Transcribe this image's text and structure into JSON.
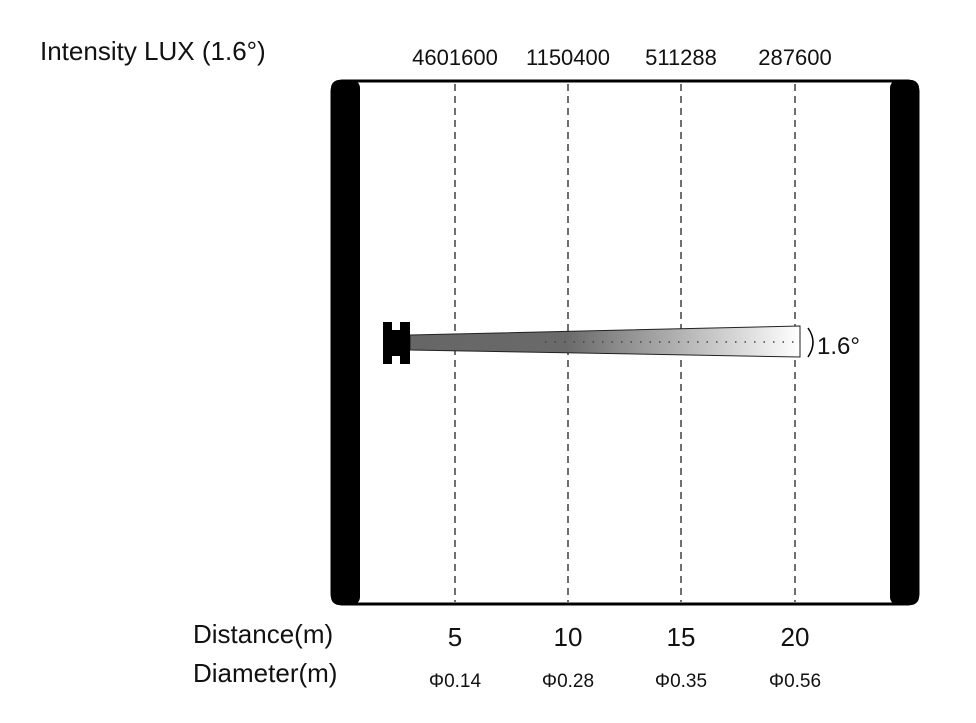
{
  "title": "Intensity LUX (1.6°)",
  "beam_angle_label": "1.6°",
  "distance_label": "Distance(m)",
  "diameter_label": "Diameter(m)",
  "columns": [
    {
      "lux": "4601600",
      "distance": "5",
      "diameter": "Φ0.14"
    },
    {
      "lux": "1150400",
      "distance": "10",
      "diameter": "Φ0.28"
    },
    {
      "lux": "511288",
      "distance": "15",
      "diameter": "Φ0.35"
    },
    {
      "lux": "287600",
      "distance": "20",
      "diameter": "Φ0.56"
    }
  ],
  "colors": {
    "frame": "#000000",
    "beam_start": "#666666",
    "beam_end": "#ffffff"
  }
}
